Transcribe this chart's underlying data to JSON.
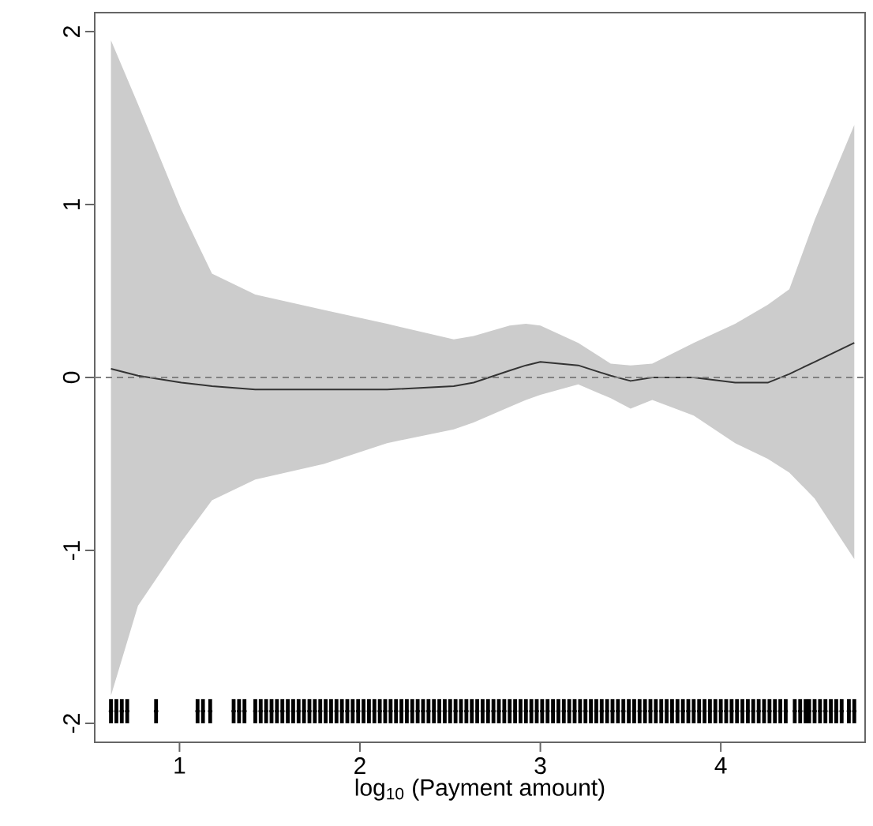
{
  "chart_data": {
    "type": "line",
    "xlabel": "log$_{10}$ (Payment amount)",
    "xlim": [
      0.53,
      4.8
    ],
    "ylim": [
      -2.11,
      2.11
    ],
    "xticks": [
      1,
      2,
      3,
      4
    ],
    "yticks": [
      -2,
      -1,
      0,
      1,
      2
    ],
    "ref_lines": [
      {
        "axis": "y",
        "value": 0,
        "color": "#808080",
        "line_style": "dashed"
      }
    ],
    "series": [
      {
        "color": "#333333",
        "x": [
          0.62,
          0.77,
          1.01,
          1.18,
          1.42,
          1.8,
          2.15,
          2.52,
          2.63,
          2.83,
          2.92,
          3.0,
          3.21,
          3.39,
          3.5,
          3.62,
          3.85,
          4.08,
          4.26,
          4.38,
          4.52,
          4.74
        ],
        "values": [
          0.05,
          0.01,
          -0.03,
          -0.05,
          -0.07,
          -0.07,
          -0.07,
          -0.05,
          -0.03,
          0.04,
          0.07,
          0.09,
          0.07,
          0.01,
          -0.02,
          0.0,
          0.0,
          -0.03,
          -0.03,
          0.02,
          0.09,
          0.2
        ],
        "upper": [
          1.95,
          1.58,
          0.97,
          0.6,
          0.48,
          0.39,
          0.31,
          0.22,
          0.24,
          0.3,
          0.31,
          0.3,
          0.2,
          0.08,
          0.07,
          0.08,
          0.2,
          0.31,
          0.42,
          0.51,
          0.91,
          1.46
        ],
        "lower": [
          -1.84,
          -1.32,
          -0.95,
          -0.71,
          -0.59,
          -0.5,
          -0.38,
          -0.3,
          -0.26,
          -0.17,
          -0.13,
          -0.1,
          -0.04,
          -0.12,
          -0.18,
          -0.13,
          -0.22,
          -0.38,
          -0.47,
          -0.55,
          -0.7,
          -1.05
        ]
      },
      {
        "type": "scatter",
        "color": "#000000",
        "marker": "circle",
        "errors": [
          0.07,
          0.07,
          0.07,
          0.07,
          0.07,
          0.07,
          0.07,
          0.07,
          0.07,
          0.07,
          0.07,
          0.07,
          0.07,
          0.07,
          0.07,
          0.07,
          0.07,
          0.07,
          0.07,
          0.07,
          0.07,
          0.07,
          0.07,
          0.07,
          0.07,
          0.07,
          0.07,
          0.07,
          0.07,
          0.07,
          0.07,
          0.07,
          0.07,
          0.07,
          0.07,
          0.07,
          0.07,
          0.07,
          0.07,
          0.07,
          0.07,
          0.07,
          0.07,
          0.07,
          0.07,
          0.07,
          0.07,
          0.07,
          0.07,
          0.07,
          0.07,
          0.07,
          0.07,
          0.07,
          0.07,
          0.07,
          0.07,
          0.07,
          0.07,
          0.07,
          0.07,
          0.07,
          0.07,
          0.07,
          0.07,
          0.07,
          0.07,
          0.07,
          0.07,
          0.07,
          0.07,
          0.07,
          0.07,
          0.07,
          0.07,
          0.07,
          0.07,
          0.07,
          0.07,
          0.07,
          0.07,
          0.07,
          0.07,
          0.07,
          0.07,
          0.07,
          0.07,
          0.07,
          0.07,
          0.07,
          0.07,
          0.07,
          0.07,
          0.07,
          0.07,
          0.07,
          0.07,
          0.07,
          0.07,
          0.07,
          0.07,
          0.07,
          0.07,
          0.07,
          0.07,
          0.07,
          0.07,
          0.07,
          0.07,
          0.07,
          0.07,
          0.07,
          0.07,
          0.07,
          0.07,
          0.07,
          0.07,
          0.07,
          0.07,
          0.07,
          0.07,
          0.07
        ],
        "x": [
          0.62,
          0.65,
          0.68,
          0.71,
          0.87,
          1.1,
          1.13,
          1.17,
          1.3,
          1.33,
          1.36,
          1.42,
          1.45,
          1.48,
          1.51,
          1.54,
          1.57,
          1.6,
          1.63,
          1.66,
          1.69,
          1.72,
          1.75,
          1.78,
          1.81,
          1.84,
          1.87,
          1.9,
          1.93,
          1.96,
          1.99,
          2.02,
          2.05,
          2.08,
          2.11,
          2.14,
          2.17,
          2.2,
          2.23,
          2.26,
          2.29,
          2.32,
          2.35,
          2.38,
          2.41,
          2.44,
          2.47,
          2.5,
          2.53,
          2.56,
          2.59,
          2.62,
          2.65,
          2.68,
          2.71,
          2.74,
          2.77,
          2.8,
          2.83,
          2.86,
          2.89,
          2.92,
          2.95,
          2.98,
          3.01,
          3.04,
          3.07,
          3.1,
          3.13,
          3.16,
          3.19,
          3.22,
          3.25,
          3.28,
          3.31,
          3.34,
          3.37,
          3.4,
          3.43,
          3.46,
          3.49,
          3.52,
          3.55,
          3.58,
          3.61,
          3.64,
          3.67,
          3.7,
          3.73,
          3.76,
          3.79,
          3.82,
          3.85,
          3.88,
          3.91,
          3.94,
          3.97,
          4.0,
          4.03,
          4.06,
          4.09,
          4.12,
          4.15,
          4.18,
          4.21,
          4.24,
          4.27,
          4.3,
          4.33,
          4.36,
          4.41,
          4.44,
          4.47,
          4.49,
          4.52,
          4.55,
          4.58,
          4.61,
          4.64,
          4.67,
          4.71,
          4.74
        ],
        "values": [
          -1.93,
          -1.93,
          -1.93,
          -1.93,
          -1.93,
          -1.93,
          -1.93,
          -1.93,
          -1.93,
          -1.93,
          -1.93,
          -1.93,
          -1.93,
          -1.93,
          -1.93,
          -1.93,
          -1.93,
          -1.93,
          -1.93,
          -1.93,
          -1.93,
          -1.93,
          -1.93,
          -1.93,
          -1.93,
          -1.93,
          -1.93,
          -1.93,
          -1.93,
          -1.93,
          -1.93,
          -1.93,
          -1.93,
          -1.93,
          -1.93,
          -1.93,
          -1.93,
          -1.93,
          -1.93,
          -1.93,
          -1.93,
          -1.93,
          -1.93,
          -1.93,
          -1.93,
          -1.93,
          -1.93,
          -1.93,
          -1.93,
          -1.93,
          -1.93,
          -1.93,
          -1.93,
          -1.93,
          -1.93,
          -1.93,
          -1.93,
          -1.93,
          -1.93,
          -1.93,
          -1.93,
          -1.93,
          -1.93,
          -1.93,
          -1.93,
          -1.93,
          -1.93,
          -1.93,
          -1.93,
          -1.93,
          -1.93,
          -1.93,
          -1.93,
          -1.93,
          -1.93,
          -1.93,
          -1.93,
          -1.93,
          -1.93,
          -1.93,
          -1.93,
          -1.93,
          -1.93,
          -1.93,
          -1.93,
          -1.93,
          -1.93,
          -1.93,
          -1.93,
          -1.93,
          -1.93,
          -1.93,
          -1.93,
          -1.93,
          -1.93,
          -1.93,
          -1.93,
          -1.93,
          -1.93,
          -1.93,
          -1.93,
          -1.93,
          -1.93,
          -1.93,
          -1.93,
          -1.93,
          -1.93,
          -1.93,
          -1.93,
          -1.93,
          -1.93,
          -1.93,
          -1.93,
          -1.93,
          -1.93,
          -1.93,
          -1.93,
          -1.93,
          -1.93,
          -1.93,
          -1.93,
          -1.93
        ]
      }
    ]
  }
}
